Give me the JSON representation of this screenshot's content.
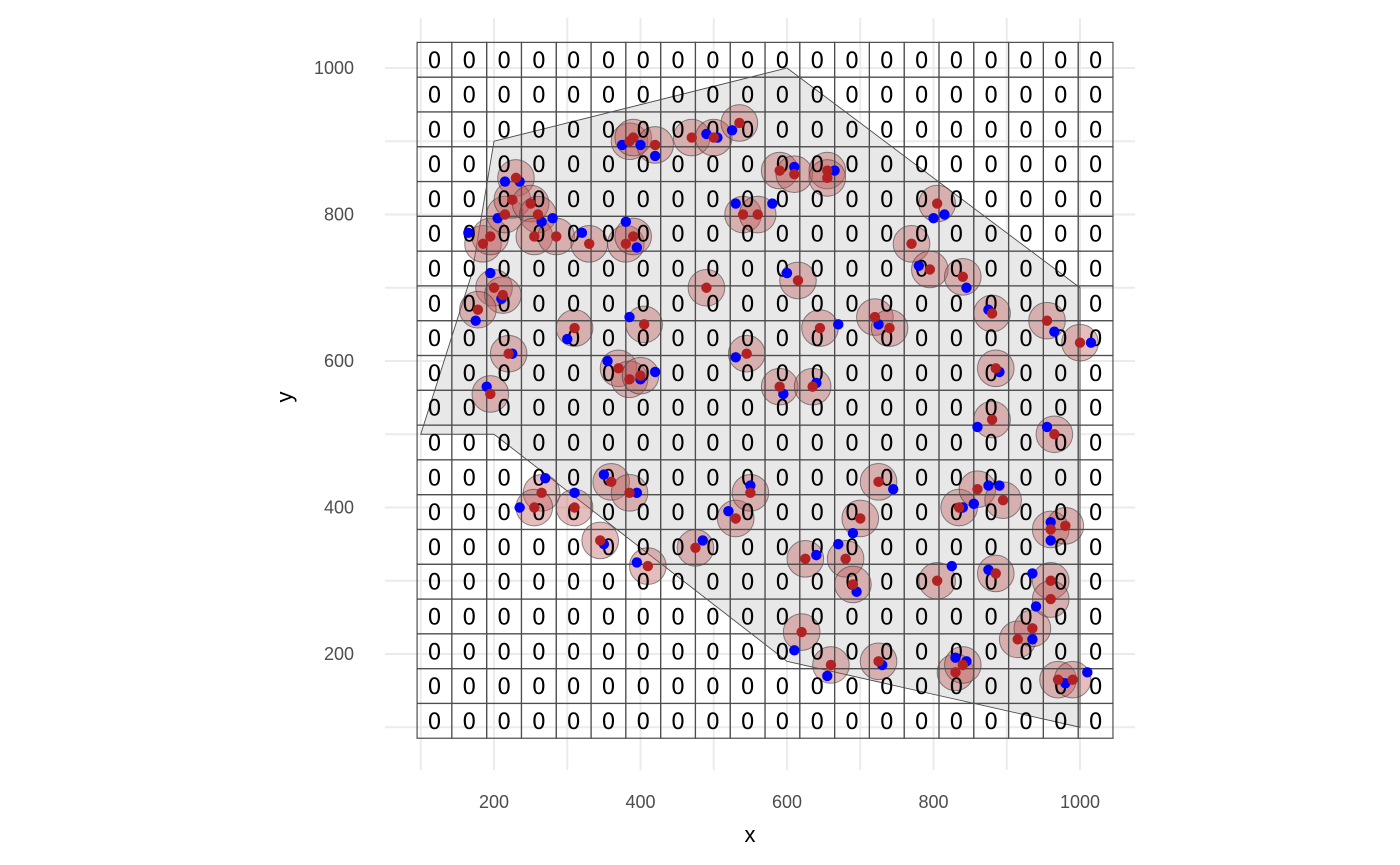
{
  "chart_data": {
    "type": "scatter",
    "xlabel": "x",
    "ylabel": "y",
    "xlim": [
      75,
      1040
    ],
    "ylim": [
      75,
      1030
    ],
    "x_ticks": [
      200,
      400,
      600,
      800,
      1000
    ],
    "y_ticks": [
      200,
      400,
      600,
      800,
      1000
    ],
    "grid": true,
    "colors": {
      "blue_points": "#0000ff",
      "red_points": "#b22222",
      "buffers": "#c0595b",
      "hull_fill": "#e8e8e8",
      "grid_cells": "#4d4d4d"
    },
    "hull": [
      [
        100,
        500
      ],
      [
        170,
        720
      ],
      [
        200,
        900
      ],
      [
        600,
        1000
      ],
      [
        1000,
        700
      ],
      [
        1000,
        100
      ],
      [
        600,
        190
      ],
      [
        200,
        500
      ]
    ],
    "grid_cells": {
      "x_min": 95,
      "x_max": 1045,
      "y_min": 85,
      "y_max": 1035,
      "n_cols": 20,
      "n_rows": 20,
      "counts": [
        "00000000000000000000",
        "00000000000000000000",
        "00000000000000000000",
        "00000000000000000000",
        "00000000000000000000",
        "00000000000000000000",
        "00000000000000000000",
        "00000000000000000000",
        "00000000000000000000",
        "00000000000000000000",
        "00000000000000000000",
        "00000000000000000000",
        "00000000000000000000",
        "00000000000000000000",
        "00000000000000000000",
        "00000000000000000000",
        "00000000000000000000",
        "00000000000000000000",
        "00000000000000000000",
        "00000000000000000000"
      ]
    },
    "red_points": [
      [
        185,
        760
      ],
      [
        195,
        770
      ],
      [
        200,
        700
      ],
      [
        212,
        690
      ],
      [
        178,
        670
      ],
      [
        220,
        610
      ],
      [
        195,
        555
      ],
      [
        215,
        800
      ],
      [
        230,
        850
      ],
      [
        225,
        820
      ],
      [
        250,
        815
      ],
      [
        260,
        800
      ],
      [
        255,
        770
      ],
      [
        285,
        770
      ],
      [
        330,
        760
      ],
      [
        380,
        760
      ],
      [
        390,
        770
      ],
      [
        385,
        900
      ],
      [
        390,
        905
      ],
      [
        420,
        895
      ],
      [
        470,
        905
      ],
      [
        500,
        905
      ],
      [
        535,
        925
      ],
      [
        540,
        800
      ],
      [
        560,
        800
      ],
      [
        590,
        860
      ],
      [
        610,
        855
      ],
      [
        655,
        860
      ],
      [
        655,
        850
      ],
      [
        805,
        815
      ],
      [
        615,
        710
      ],
      [
        490,
        700
      ],
      [
        405,
        650
      ],
      [
        310,
        645
      ],
      [
        370,
        590
      ],
      [
        385,
        575
      ],
      [
        400,
        580
      ],
      [
        545,
        610
      ],
      [
        590,
        565
      ],
      [
        635,
        565
      ],
      [
        645,
        645
      ],
      [
        720,
        660
      ],
      [
        740,
        645
      ],
      [
        770,
        760
      ],
      [
        795,
        725
      ],
      [
        840,
        715
      ],
      [
        880,
        665
      ],
      [
        885,
        590
      ],
      [
        880,
        520
      ],
      [
        965,
        500
      ],
      [
        955,
        655
      ],
      [
        1000,
        625
      ],
      [
        360,
        435
      ],
      [
        385,
        420
      ],
      [
        265,
        420
      ],
      [
        255,
        400
      ],
      [
        310,
        400
      ],
      [
        345,
        355
      ],
      [
        410,
        320
      ],
      [
        475,
        345
      ],
      [
        530,
        385
      ],
      [
        550,
        420
      ],
      [
        625,
        330
      ],
      [
        680,
        330
      ],
      [
        700,
        385
      ],
      [
        725,
        435
      ],
      [
        690,
        295
      ],
      [
        805,
        300
      ],
      [
        835,
        400
      ],
      [
        860,
        425
      ],
      [
        895,
        410
      ],
      [
        885,
        310
      ],
      [
        915,
        220
      ],
      [
        935,
        235
      ],
      [
        960,
        300
      ],
      [
        960,
        275
      ],
      [
        960,
        370
      ],
      [
        980,
        375
      ],
      [
        620,
        230
      ],
      [
        660,
        185
      ],
      [
        725,
        190
      ],
      [
        830,
        175
      ],
      [
        840,
        185
      ],
      [
        970,
        165
      ],
      [
        990,
        165
      ]
    ],
    "blue_points": [
      [
        165,
        775
      ],
      [
        195,
        720
      ],
      [
        205,
        795
      ],
      [
        215,
        845
      ],
      [
        235,
        845
      ],
      [
        265,
        790
      ],
      [
        280,
        795
      ],
      [
        320,
        775
      ],
      [
        380,
        790
      ],
      [
        395,
        755
      ],
      [
        375,
        895
      ],
      [
        400,
        895
      ],
      [
        420,
        880
      ],
      [
        490,
        910
      ],
      [
        505,
        905
      ],
      [
        525,
        915
      ],
      [
        530,
        815
      ],
      [
        580,
        815
      ],
      [
        610,
        865
      ],
      [
        665,
        860
      ],
      [
        600,
        720
      ],
      [
        385,
        660
      ],
      [
        300,
        630
      ],
      [
        210,
        685
      ],
      [
        175,
        655
      ],
      [
        225,
        610
      ],
      [
        190,
        565
      ],
      [
        355,
        600
      ],
      [
        400,
        575
      ],
      [
        420,
        585
      ],
      [
        530,
        605
      ],
      [
        595,
        555
      ],
      [
        640,
        570
      ],
      [
        670,
        650
      ],
      [
        725,
        650
      ],
      [
        780,
        730
      ],
      [
        800,
        795
      ],
      [
        815,
        800
      ],
      [
        845,
        700
      ],
      [
        875,
        670
      ],
      [
        890,
        585
      ],
      [
        860,
        510
      ],
      [
        955,
        510
      ],
      [
        965,
        640
      ],
      [
        1015,
        625
      ],
      [
        395,
        420
      ],
      [
        350,
        445
      ],
      [
        270,
        440
      ],
      [
        235,
        400
      ],
      [
        310,
        420
      ],
      [
        350,
        350
      ],
      [
        395,
        325
      ],
      [
        485,
        355
      ],
      [
        520,
        395
      ],
      [
        550,
        430
      ],
      [
        640,
        335
      ],
      [
        670,
        350
      ],
      [
        690,
        365
      ],
      [
        745,
        425
      ],
      [
        695,
        285
      ],
      [
        825,
        320
      ],
      [
        840,
        400
      ],
      [
        855,
        405
      ],
      [
        875,
        430
      ],
      [
        890,
        430
      ],
      [
        875,
        315
      ],
      [
        935,
        310
      ],
      [
        940,
        265
      ],
      [
        935,
        220
      ],
      [
        960,
        380
      ],
      [
        960,
        355
      ],
      [
        610,
        205
      ],
      [
        655,
        170
      ],
      [
        730,
        185
      ],
      [
        830,
        195
      ],
      [
        845,
        190
      ],
      [
        980,
        160
      ],
      [
        1010,
        175
      ]
    ]
  }
}
